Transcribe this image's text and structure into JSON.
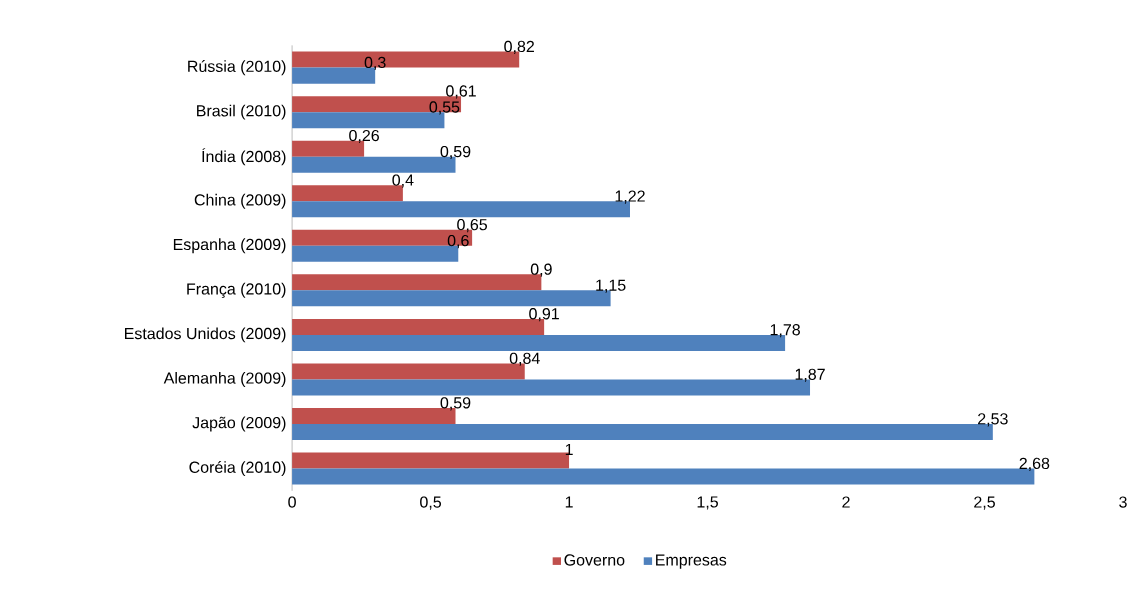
{
  "chart_data": {
    "type": "bar",
    "orientation": "horizontal",
    "categories": [
      "Rússia (2010)",
      "Brasil (2010)",
      "Índia (2008)",
      "China (2009)",
      "Espanha (2009)",
      "França (2010)",
      "Estados Unidos (2009)",
      "Alemanha (2009)",
      "Japão (2009)",
      "Coréia (2010)"
    ],
    "series": [
      {
        "name": "Governo",
        "color": "#c0504d",
        "values": [
          0.82,
          0.61,
          0.26,
          0.4,
          0.65,
          0.9,
          0.91,
          0.84,
          0.59,
          1
        ],
        "value_labels": [
          "0,82",
          "0,61",
          "0,26",
          "0,4",
          "0,65",
          "0,9",
          "0,91",
          "0,84",
          "0,59",
          "1"
        ]
      },
      {
        "name": "Empresas",
        "color": "#4f81bd",
        "values": [
          0.3,
          0.55,
          0.59,
          1.22,
          0.6,
          1.15,
          1.78,
          1.87,
          2.53,
          2.68
        ],
        "value_labels": [
          "0,3",
          "0,55",
          "0,59",
          "1,22",
          "0,6",
          "1,15",
          "1,78",
          "1,87",
          "2,53",
          "2,68"
        ]
      }
    ],
    "xlim": [
      0,
      3
    ],
    "xticks": [
      0,
      {
        "value": 0.5,
        "label": "0,5"
      },
      1,
      {
        "value": 1.5,
        "label": "1,5"
      },
      2,
      {
        "value": 2.5,
        "label": "2,5"
      },
      3
    ],
    "legend": "bottom",
    "grid": false
  }
}
